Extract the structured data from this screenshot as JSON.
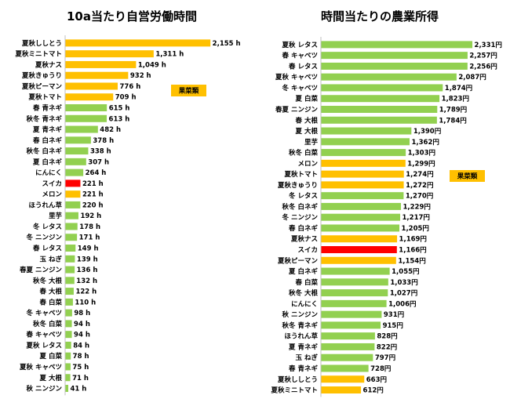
{
  "colors": {
    "default": "#92D050",
    "fruit_veg": "#FFC000",
    "highlight": "#FF0000",
    "axis": "#BFBFBF"
  },
  "chart_data": [
    {
      "type": "bar",
      "orientation": "horizontal",
      "title": "10a当たり自営労働時間",
      "legend_label": "果菜類",
      "xlim": [
        0,
        2300
      ],
      "categories": [
        "夏秋ししとう",
        "夏秋ミニトマト",
        "夏秋ナス",
        "夏秋きゅうり",
        "夏秋ピーマン",
        "夏秋トマト",
        "春 青ネギ",
        "秋冬 青ネギ",
        "夏 青ネギ",
        "春 白ネギ",
        "秋冬 白ネギ",
        "夏 白ネギ",
        "にんにく",
        "スイカ",
        "メロン",
        "ほうれん草",
        "里芋",
        "冬 レタス",
        "冬 ニンジン",
        "春 レタス",
        "玉 ねぎ",
        "春夏 ニンジン",
        "秋冬 大根",
        "春 大根",
        "春 白菜",
        "冬 キャベツ",
        "秋冬 白菜",
        "春 キャベツ",
        "夏秋 レタス",
        "夏 白菜",
        "夏秋 キャベツ",
        "夏 大根",
        "秋 ニンジン"
      ],
      "values": [
        2155,
        1311,
        1049,
        932,
        776,
        709,
        615,
        613,
        482,
        378,
        338,
        307,
        264,
        221,
        221,
        220,
        192,
        178,
        171,
        149,
        139,
        136,
        132,
        122,
        110,
        98,
        94,
        94,
        84,
        78,
        75,
        71,
        41
      ],
      "labels": [
        "2,155 h",
        "1,311 h",
        "1,049 h",
        "932 h",
        "776 h",
        "709 h",
        "615 h",
        "613 h",
        "482 h",
        "378 h",
        "338 h",
        "307 h",
        "264 h",
        "221 h",
        "221 h",
        "220 h",
        "192 h",
        "178 h",
        "171 h",
        "149 h",
        "139 h",
        "136 h",
        "132 h",
        "122 h",
        "110 h",
        "98 h",
        "94 h",
        "94 h",
        "84 h",
        "78 h",
        "75 h",
        "71 h",
        "41 h"
      ],
      "bar_colors": [
        "fruit_veg",
        "fruit_veg",
        "fruit_veg",
        "fruit_veg",
        "fruit_veg",
        "fruit_veg",
        "default",
        "default",
        "default",
        "default",
        "default",
        "default",
        "default",
        "highlight",
        "fruit_veg",
        "default",
        "default",
        "default",
        "default",
        "default",
        "default",
        "default",
        "default",
        "default",
        "default",
        "default",
        "default",
        "default",
        "default",
        "default",
        "default",
        "default",
        "default"
      ]
    },
    {
      "type": "bar",
      "orientation": "horizontal",
      "title": "時間当たりの農業所得",
      "legend_label": "果菜類",
      "xlim": [
        0,
        2400
      ],
      "categories": [
        "夏秋 レタス",
        "春 キャベツ",
        "春 レタス",
        "夏秋 キャベツ",
        "冬 キャベツ",
        "夏 白菜",
        "春夏 ニンジン",
        "春 大根",
        "夏 大根",
        "里芋",
        "秋冬 白菜",
        "メロン",
        "夏秋トマト",
        "夏秋きゅうり",
        "冬 レタス",
        "秋冬 白ネギ",
        "冬 ニンジン",
        "春 白ネギ",
        "夏秋ナス",
        "スイカ",
        "夏秋ピーマン",
        "夏 白ネギ",
        "春 白菜",
        "秋冬 大根",
        "にんにく",
        "秋 ニンジン",
        "秋冬 青ネギ",
        "ほうれん草",
        "夏 青ネギ",
        "玉 ねぎ",
        "春 青ネギ",
        "夏秋ししとう",
        "夏秋ミニトマト"
      ],
      "values": [
        2331,
        2257,
        2256,
        2087,
        1874,
        1823,
        1789,
        1784,
        1390,
        1362,
        1303,
        1299,
        1274,
        1272,
        1270,
        1229,
        1217,
        1205,
        1169,
        1166,
        1154,
        1055,
        1033,
        1027,
        1006,
        931,
        915,
        828,
        822,
        797,
        728,
        663,
        612
      ],
      "labels": [
        "2,331円",
        "2,257円",
        "2,256円",
        "2,087円",
        "1,874円",
        "1,823円",
        "1,789円",
        "1,784円",
        "1,390円",
        "1,362円",
        "1,303円",
        "1,299円",
        "1,274円",
        "1,272円",
        "1,270円",
        "1,229円",
        "1,217円",
        "1,205円",
        "1,169円",
        "1,166円",
        "1,154円",
        "1,055円",
        "1,033円",
        "1,027円",
        "1,006円",
        "931円",
        "915円",
        "828円",
        "822円",
        "797円",
        "728円",
        "663円",
        "612円"
      ],
      "bar_colors": [
        "default",
        "default",
        "default",
        "default",
        "default",
        "default",
        "default",
        "default",
        "default",
        "default",
        "default",
        "fruit_veg",
        "fruit_veg",
        "fruit_veg",
        "default",
        "default",
        "default",
        "default",
        "fruit_veg",
        "highlight",
        "fruit_veg",
        "default",
        "default",
        "default",
        "default",
        "default",
        "default",
        "default",
        "default",
        "default",
        "default",
        "fruit_veg",
        "fruit_veg"
      ]
    }
  ]
}
